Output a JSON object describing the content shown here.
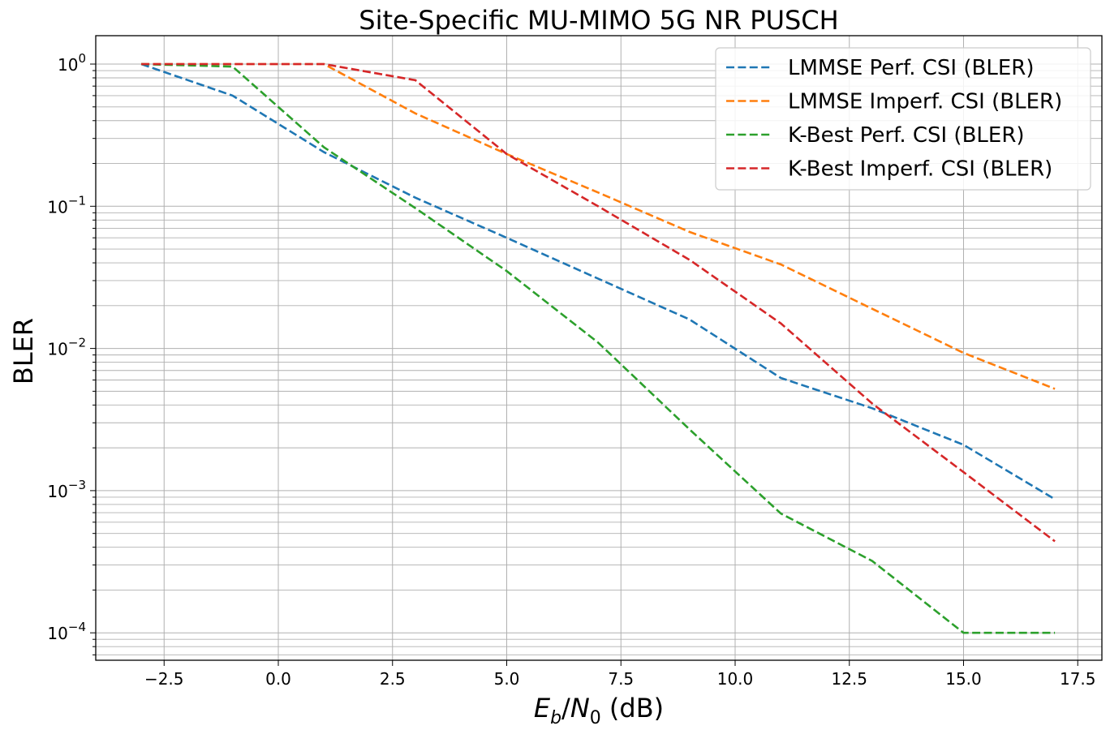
{
  "chart_data": {
    "type": "line",
    "title": "Site-Specific MU-MIMO 5G NR PUSCH",
    "xlabel": "E_b/N_0 (dB)",
    "ylabel": "BLER",
    "yscale": "log",
    "xlim": [
      -4.0,
      18.0
    ],
    "ylim": [
      6.4e-05,
      1.6
    ],
    "grid": true,
    "legend_position": "upper right",
    "x_ticks": [
      -2.5,
      0.0,
      2.5,
      5.0,
      7.5,
      10.0,
      12.5,
      15.0,
      17.5
    ],
    "x_tick_labels": [
      "−2.5",
      "0.0",
      "2.5",
      "5.0",
      "7.5",
      "10.0",
      "12.5",
      "15.0",
      "17.5"
    ],
    "y_ticks": [
      1,
      0.1,
      0.01,
      0.001,
      0.0001
    ],
    "y_tick_labels": [
      "10^0",
      "10^-1",
      "10^-2",
      "10^-3",
      "10^-4"
    ],
    "x": [
      -3,
      -1,
      1,
      3,
      5,
      7,
      9,
      11,
      13,
      15,
      17
    ],
    "series": [
      {
        "name": "LMMSE Perf. CSI (BLER)",
        "color": "#1f77b4",
        "linestyle": "dashed",
        "values": [
          1.0,
          0.6,
          0.24,
          0.115,
          0.06,
          0.031,
          0.016,
          0.0062,
          0.0038,
          0.0021,
          0.00087
        ]
      },
      {
        "name": "LMMSE Imperf. CSI (BLER)",
        "color": "#ff7f0e",
        "linestyle": "dashed",
        "values": [
          1.0,
          1.0,
          1.0,
          0.45,
          0.233,
          0.125,
          0.066,
          0.039,
          0.019,
          0.0093,
          0.0052
        ]
      },
      {
        "name": "K-Best Perf. CSI (BLER)",
        "color": "#2ca02c",
        "linestyle": "dashed",
        "values": [
          1.0,
          0.96,
          0.26,
          0.097,
          0.035,
          0.011,
          0.0027,
          0.00069,
          0.00032,
          0.0001,
          0.0001
        ]
      },
      {
        "name": "K-Best Imperf. CSI (BLER)",
        "color": "#d62728",
        "linestyle": "dashed",
        "values": [
          1.0,
          1.0,
          1.0,
          0.77,
          0.233,
          0.1,
          0.042,
          0.015,
          0.0041,
          0.00135,
          0.00044
        ]
      }
    ]
  }
}
